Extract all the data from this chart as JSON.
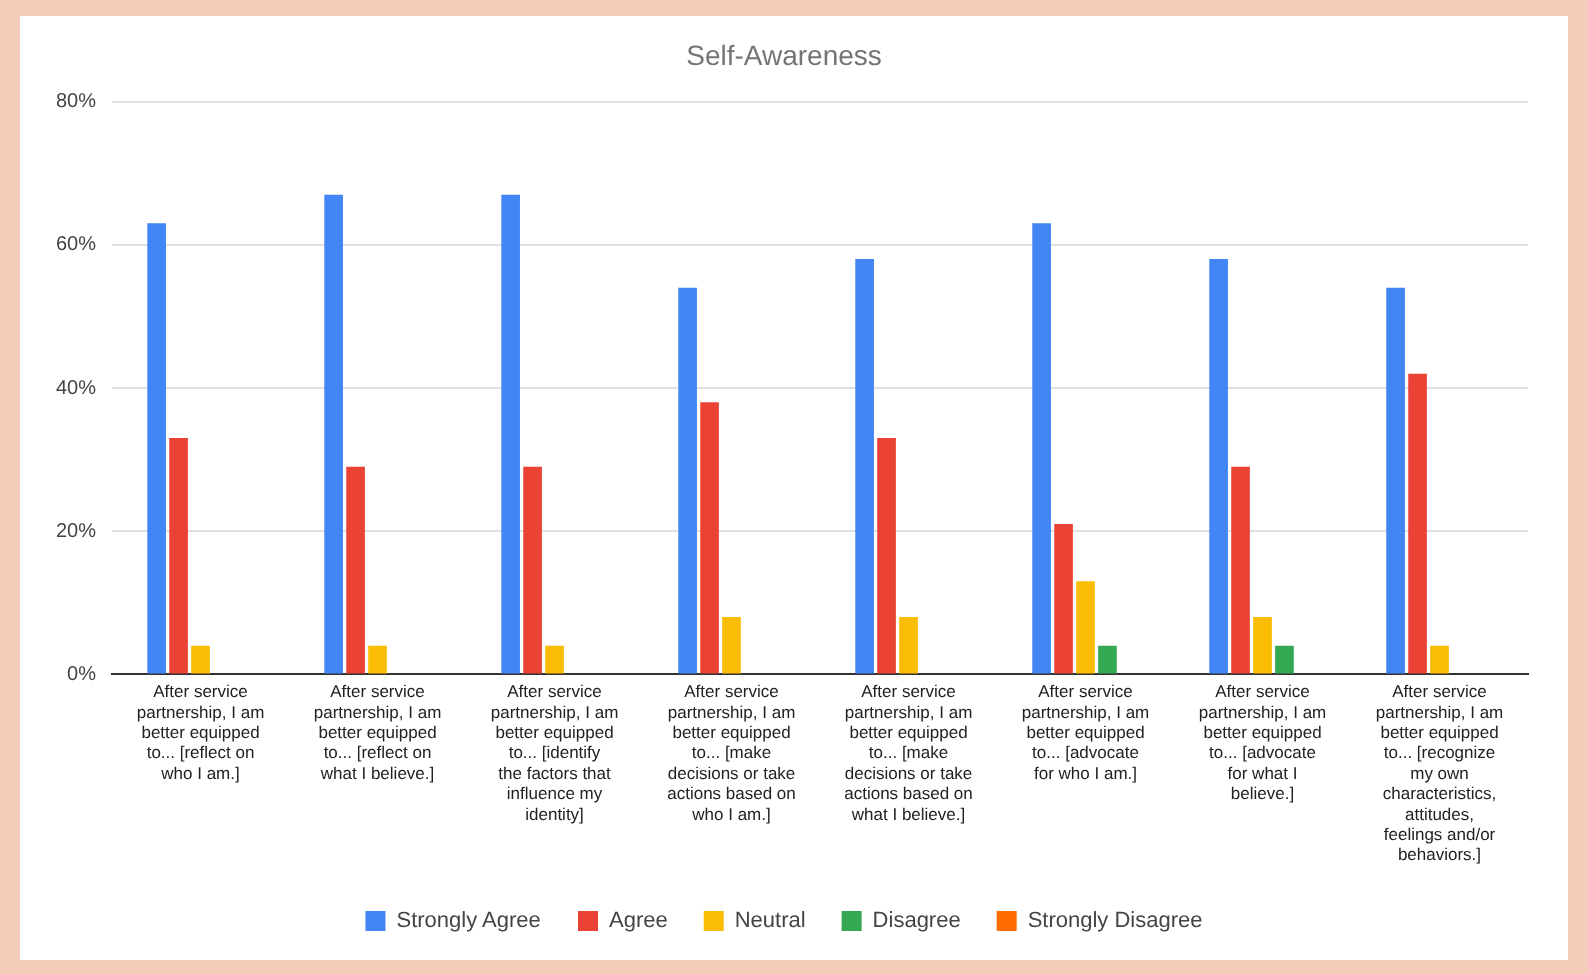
{
  "chart_data": {
    "type": "bar",
    "title": "Self-Awareness",
    "categories": [
      "After service partnership, I am better equipped to... [reflect on who I am.]",
      "After service partnership, I am better equipped to... [reflect on what I believe.]",
      "After service partnership, I am better equipped to... [identify the factors that influence my identity]",
      "After service partnership, I am better equipped to... [make decisions or take actions based on who I am.]",
      "After service partnership, I am better equipped to... [make decisions or take actions based on what I believe.]",
      "After service partnership, I am better equipped to... [advocate for who I am.]",
      "After service partnership, I am better equipped to... [advocate for what I believe.]",
      "After service partnership, I am better equipped to... [recognize my own characteristics, attitudes, feelings and/or behaviors.]"
    ],
    "series": [
      {
        "name": "Strongly Agree",
        "color": "#4285f4",
        "values": [
          63,
          67,
          67,
          54,
          58,
          63,
          58,
          54
        ]
      },
      {
        "name": "Agree",
        "color": "#ea4335",
        "values": [
          33,
          29,
          29,
          38,
          33,
          21,
          29,
          42
        ]
      },
      {
        "name": "Neutral",
        "color": "#fbbc04",
        "values": [
          4,
          4,
          4,
          8,
          8,
          13,
          8,
          4
        ]
      },
      {
        "name": "Disagree",
        "color": "#34a853",
        "values": [
          0,
          0,
          0,
          0,
          0,
          4,
          4,
          0
        ]
      },
      {
        "name": "Strongly Disagree",
        "color": "#ff6d01",
        "values": [
          0,
          0,
          0,
          0,
          0,
          0,
          0,
          0
        ]
      }
    ],
    "ylim": [
      0,
      80
    ],
    "yticks": [
      {
        "value": 0,
        "label": "0%"
      },
      {
        "value": 20,
        "label": "20%"
      },
      {
        "value": 40,
        "label": "40%"
      },
      {
        "value": 60,
        "label": "60%"
      },
      {
        "value": 80,
        "label": "80%"
      }
    ],
    "grid": "y",
    "legend": "bottom"
  }
}
